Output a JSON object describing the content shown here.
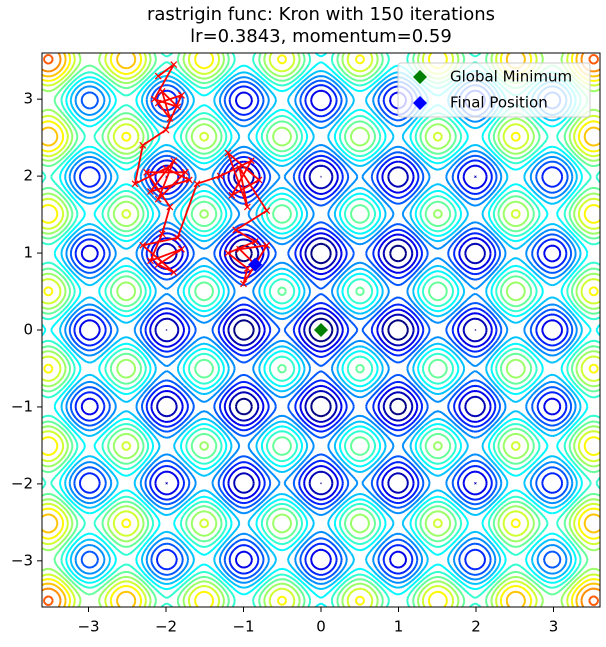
{
  "chart_data": {
    "type": "contour",
    "title": "rastrigin func: Kron with 150 iterations",
    "subtitle": "lr=0.3843, momentum=0.59",
    "function": "rastrigin",
    "colormap": "jet",
    "levels": [
      4,
      8,
      12,
      16,
      20,
      24,
      28,
      32,
      36,
      40,
      44,
      48,
      52,
      56,
      60,
      64,
      68,
      72,
      76,
      80
    ],
    "xlim": [
      -3.6,
      3.6
    ],
    "ylim": [
      -3.6,
      3.6
    ],
    "xticks": [
      {
        "value": -3,
        "label": "−3"
      },
      {
        "value": -2,
        "label": "−2"
      },
      {
        "value": -1,
        "label": "−1"
      },
      0,
      1,
      2,
      3
    ],
    "yticks": [
      {
        "value": -3,
        "label": "−3"
      },
      {
        "value": -2,
        "label": "−2"
      },
      {
        "value": -1,
        "label": "−1"
      },
      0,
      1,
      2,
      3
    ],
    "legend": "upper right",
    "path": {
      "color": "red",
      "x": [
        -2.1,
        -1.9,
        -2.15,
        -1.85,
        -2.05,
        -1.95,
        -2.1,
        -1.8,
        -2.0,
        -2.3,
        -2.4,
        -2.0,
        -1.7,
        -2.2,
        -1.9,
        -2.1,
        -1.75,
        -2.25,
        -1.95,
        -2.05,
        -2.2,
        -1.8,
        -2.1,
        -1.9,
        -2.3,
        -1.85,
        -1.6,
        -1.3,
        -0.9,
        -1.15,
        -0.8,
        -1.2,
        -0.95,
        -1.05,
        -0.7,
        -1.1,
        -0.85,
        -1.2,
        -0.95,
        -1.0,
        -0.7,
        -1.05,
        -0.85
      ],
      "y": [
        3.3,
        3.45,
        3.0,
        2.9,
        3.1,
        2.75,
        2.95,
        3.05,
        2.6,
        2.4,
        1.9,
        2.1,
        1.95,
        1.8,
        2.2,
        1.7,
        2.05,
        2.05,
        1.6,
        1.25,
        0.9,
        1.05,
        0.85,
        0.75,
        1.1,
        1.2,
        1.9,
        2.0,
        2.2,
        1.75,
        1.95,
        2.3,
        1.6,
        2.1,
        1.55,
        1.3,
        1.15,
        1.0,
        0.8,
        0.6,
        1.1,
        1.05,
        0.85
      ]
    },
    "series": [
      {
        "name": "Global Minimum",
        "color": "green",
        "x": [
          0
        ],
        "y": [
          0
        ]
      },
      {
        "name": "Final Position",
        "color": "blue",
        "x": [
          -0.85
        ],
        "y": [
          0.85
        ]
      }
    ]
  }
}
